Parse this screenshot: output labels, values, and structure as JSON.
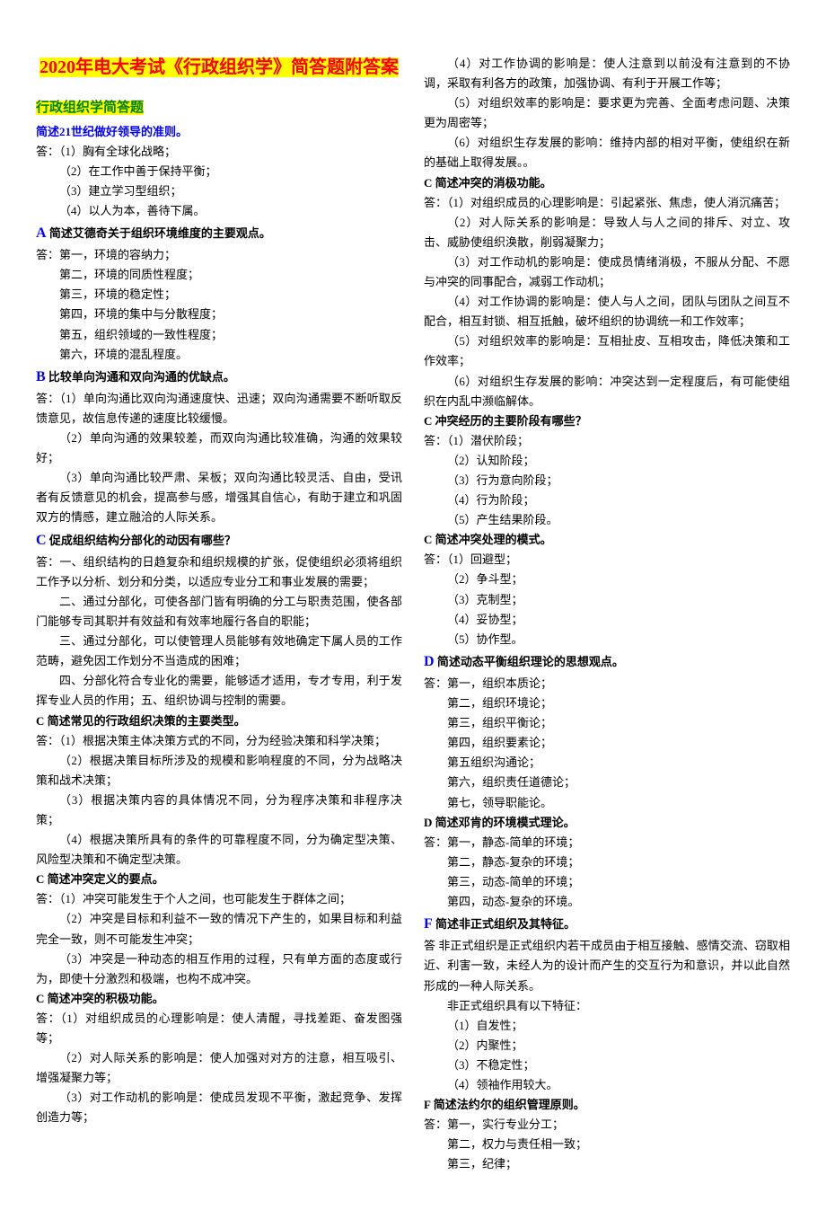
{
  "title": {
    "year": "2020",
    "text": "年电大考试《行政组织学》简答题附答案"
  },
  "sectionHeader": "行政组织学简答题",
  "leftCol": {
    "q0": {
      "title": "简述21世纪做好领导的准则。",
      "a": [
        "答：（1）胸有全球化战略；",
        "（2）在工作中善于保持平衡；",
        "（3）建立学习型组织；",
        "（4）以人为本，善待下属。"
      ]
    },
    "qA": {
      "letter": "A",
      "title": "简述艾德奇关于组织环境维度的主要观点。",
      "a": [
        "答：第一，环境的容纳力；",
        "第二，环境的同质性程度；",
        "第三，环境的稳定性；",
        "第四，环境的集中与分散程度；",
        "第五，组织领域的一致性程度；",
        "第六，环境的混乱程度。"
      ]
    },
    "qB": {
      "letter": "B",
      "title": "比较单向沟通和双向沟通的优缺点。",
      "a": [
        "答：（1）单向沟通比双向沟通速度快、迅速；双向沟通需要不断听取反馈意见，故信息传递的速度比较缓慢。",
        "（2）单向沟通的效果较差，而双向沟通比较准确，沟通的效果较好；",
        "（3）单向沟通比较严肃、呆板；双向沟通比较灵活、自由，受讯者有反馈意见的机会，提高参与感，增强其自信心，有助于建立和巩固双方的情感，建立融洽的人际关系。"
      ]
    },
    "qC1": {
      "letter": "C",
      "title": "促成组织结构分部化的动因有哪些？",
      "a": [
        "答：一、组织结构的日趋复杂和组织规模的扩张，促使组织必须将组织工作予以分析、划分和分类，以适应专业分工和事业发展的需要；",
        "二、通过分部化，可使各部门皆有明确的分工与职责范围，使各部门能够专司其职并有效益和有效率地履行各自的职能；",
        "三、通过分部化，可以使管理人员能够有效地确定下属人员的工作范畴，避免因工作划分不当造成的困难；",
        "四、分部化符合专业化的需要，能够适才适用，专才专用，利于发挥专业人员的作用；五、组织协调与控制的需要。"
      ]
    },
    "qC2": {
      "title": "C  简述常见的行政组织决策的主要类型。",
      "a": [
        "答：（1）根据决策主体决策方式的不同，分为经验决策和科学决策；",
        "（2）根据决策目标所涉及的规模和影响程度的不同，分为战略决策和战术决策；",
        "（3）根据决策内容的具体情况不同，分为程序决策和非程序决策；",
        "（4）根据决策所具有的条件的可靠程度不同，分为确定型决策、风险型决策和不确定型决策。"
      ]
    },
    "qC3": {
      "title": "C  简述冲突定义的要点。",
      "a": [
        "答：（1）冲突可能发生于个人之间，也可能发生于群体之间；",
        "（2）冲突是目标和利益不一致的情况下产生的，如果目标和利益完全一致，则不可能发生冲突；",
        "（3）冲突是一种动态的相互作用的过程，只有单方面的态度或行为，即使十分激烈和极端，也构不成冲突。"
      ]
    },
    "qC4": {
      "title": "C  简述冲突的积极功能。",
      "a": [
        "答：（1）对组织成员的心理影响是：使人清醒，寻找差距、奋发图强等；",
        "（2）对人际关系的影响是：使人加强对对方的注意，相互吸引、增强凝聚力等；",
        "（3）对工作动机的影响是：使成员发现不平衡，激起竞争、发挥创造力等；"
      ]
    }
  },
  "rightCol": {
    "qC4cont": [
      "（4）对工作协调的影响是：使人注意到以前没有注意到的不协调，采取有利各方的政策，加强协调、有利于开展工作等；",
      "（5）对组织效率的影响是：要求更为完善、全面考虑问题、决策更为周密等；",
      "（6）对组织生存发展的影响：维持内部的相对平衡，使组织在新的基础上取得发展。。"
    ],
    "qC5": {
      "title": "C  简述冲突的消极功能。",
      "a": [
        "答：（1）对组织成员的心理影响是：引起紧张、焦虑，使人消沉痛苦；",
        "（2）对人际关系的影响是：导致人与人之间的排斥、对立、攻击、威胁使组织涣散，削弱凝聚力；",
        "（3）对工作动机的影响是：使成员情绪消极，不服从分配、不愿与冲突的同事配合，减弱工作动机；",
        "（4）对工作协调的影响是：使人与人之间，团队与团队之间互不配合，相互封锁、相互抵触，破坏组织的协调统一和工作效率；",
        "（5）对组织效率的影响是：互相扯皮、互相攻击，降低决策和工作效率；",
        "（6）对组织生存发展的影响：冲突达到一定程度后，有可能使组织在内乱中濒临解体。"
      ]
    },
    "qC6": {
      "title": "C  冲突经历的主要阶段有哪些？",
      "a": [
        "答：（1）潜伏阶段；",
        "（2）认知阶段；",
        "（3）行为意向阶段；",
        "（4）行为阶段；",
        "（5）产生结果阶段。"
      ]
    },
    "qC7": {
      "title": "C  简述冲突处理的模式。",
      "a": [
        "答：（1）回避型；",
        "（2）争斗型；",
        "（3）克制型；",
        "（4）妥协型；",
        "（5）协作型。"
      ]
    },
    "qD1": {
      "letter": "D",
      "title": "简述动态平衡组织理论的思想观点。",
      "a": [
        "答：第一，组织本质论；",
        "第二，组织环境论；",
        "第三，组织平衡论；",
        "第四，组织要素论；",
        "第五组织沟通论；",
        "第六，组织责任道德论；",
        "第七，领导职能论。"
      ]
    },
    "qD2": {
      "title": "D  简述邓肯的环境模式理论。",
      "a": [
        "答：第一，静态-简单的环境；",
        "第二，静态-复杂的环境；",
        "第三，动态-简单的环境；",
        "第四，动态-复杂的环境。"
      ]
    },
    "qF1": {
      "letter": "F",
      "title": "简述非正式组织及其特征。",
      "intro": "答 非正式组织是正式组织内若干成员由于相互接触、感情交流、窃取相近、利害一致，未经人为的设计而产生的交互行为和意识，并以此自然形成的一种人际关系。",
      "sub": "非正式组织具有以下特征：",
      "a": [
        "（1）自发性；",
        "（2）内聚性；",
        "（3）不稳定性；",
        "（4）领袖作用较大。"
      ]
    },
    "qF2": {
      "title": "F  简述法约尔的组织管理原则。",
      "a": [
        "答：第一，实行专业分工；",
        "第二，权力与责任相一致；",
        "第三，纪律；"
      ]
    }
  }
}
